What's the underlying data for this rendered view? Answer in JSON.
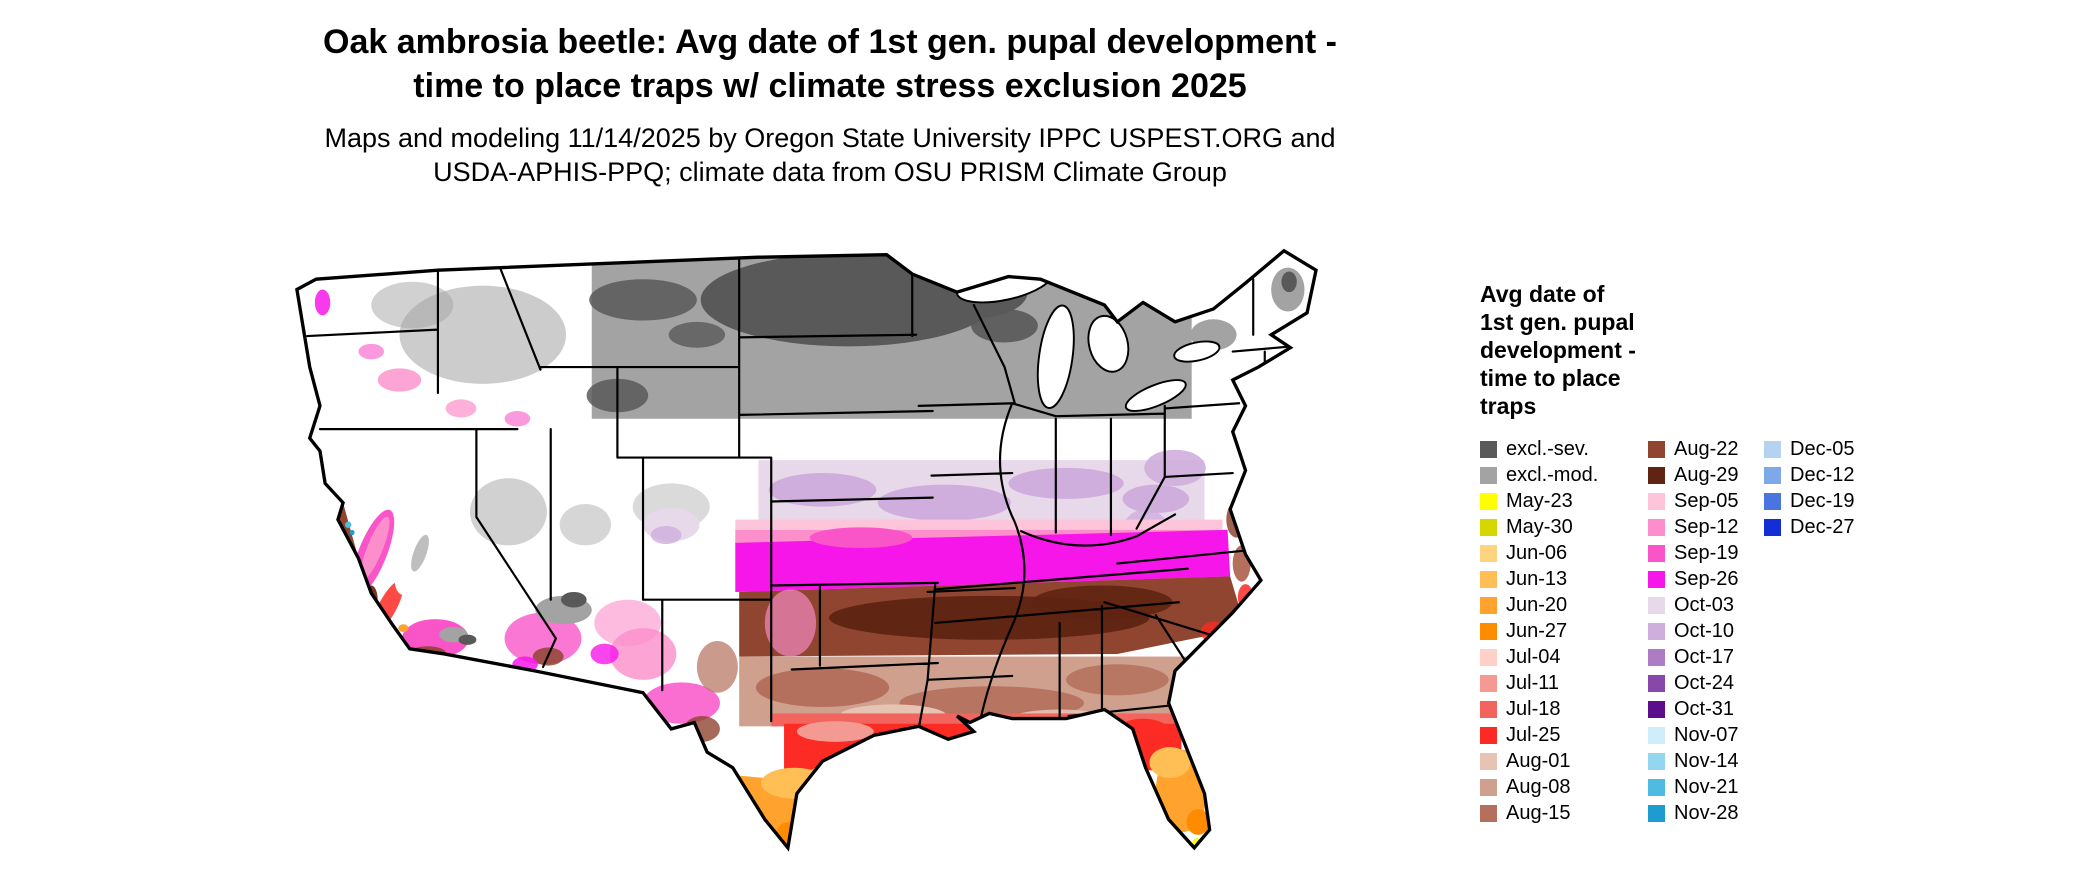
{
  "title": {
    "line1": "Oak ambrosia beetle: Avg date of 1st gen. pupal development -",
    "line2": "time to place traps w/ climate stress exclusion 2025"
  },
  "subtitle": {
    "line1": "Maps and modeling 11/14/2025 by Oregon State University IPPC USPEST.ORG and",
    "line2": "USDA-APHIS-PPQ; climate data from OSU PRISM Climate Group"
  },
  "map": {
    "region": "Contiguous United States",
    "year": "2025"
  },
  "legend": {
    "title_lines": [
      "Avg date of",
      "1st gen. pupal",
      "development -",
      "time to place",
      "traps"
    ],
    "columns": [
      {
        "entries": [
          {
            "label": "excl.-sev.",
            "color": "#595959"
          },
          {
            "label": "excl.-mod.",
            "color": "#a3a3a3"
          },
          {
            "label": "May-23",
            "color": "#ffff00"
          },
          {
            "label": "May-30",
            "color": "#d6d600"
          },
          {
            "label": "Jun-06",
            "color": "#ffd480"
          },
          {
            "label": "Jun-13",
            "color": "#ffbf55"
          },
          {
            "label": "Jun-20",
            "color": "#ffa22e"
          },
          {
            "label": "Jun-27",
            "color": "#ff8c00"
          },
          {
            "label": "Jul-04",
            "color": "#ffd0c8"
          },
          {
            "label": "Jul-11",
            "color": "#f49a92"
          },
          {
            "label": "Jul-18",
            "color": "#f2655e"
          },
          {
            "label": "Jul-25",
            "color": "#fc2b23"
          },
          {
            "label": "Aug-01",
            "color": "#e7c3b4"
          },
          {
            "label": "Aug-08",
            "color": "#cfa08e"
          },
          {
            "label": "Aug-15",
            "color": "#b4705c"
          }
        ]
      },
      {
        "entries": [
          {
            "label": "Aug-22",
            "color": "#8f4530"
          },
          {
            "label": "Aug-29",
            "color": "#5f2412"
          },
          {
            "label": "Sep-05",
            "color": "#fec5da"
          },
          {
            "label": "Sep-12",
            "color": "#fb8ecb"
          },
          {
            "label": "Sep-19",
            "color": "#f955c9"
          },
          {
            "label": "Sep-26",
            "color": "#f716e9"
          },
          {
            "label": "Oct-03",
            "color": "#e7d9ea"
          },
          {
            "label": "Oct-10",
            "color": "#cfaedd"
          },
          {
            "label": "Oct-17",
            "color": "#ad7cc4"
          },
          {
            "label": "Oct-24",
            "color": "#8747ab"
          },
          {
            "label": "Oct-31",
            "color": "#5c0f8b"
          },
          {
            "label": "Nov-07",
            "color": "#cfeef9"
          },
          {
            "label": "Nov-14",
            "color": "#92d7ef"
          },
          {
            "label": "Nov-21",
            "color": "#4fbbe2"
          },
          {
            "label": "Nov-28",
            "color": "#1e9cd2"
          }
        ]
      },
      {
        "entries": [
          {
            "label": "Dec-05",
            "color": "#b4d3f0"
          },
          {
            "label": "Dec-12",
            "color": "#7fa8e8"
          },
          {
            "label": "Dec-19",
            "color": "#4a74de"
          },
          {
            "label": "Dec-27",
            "color": "#112fd4"
          }
        ]
      }
    ]
  }
}
